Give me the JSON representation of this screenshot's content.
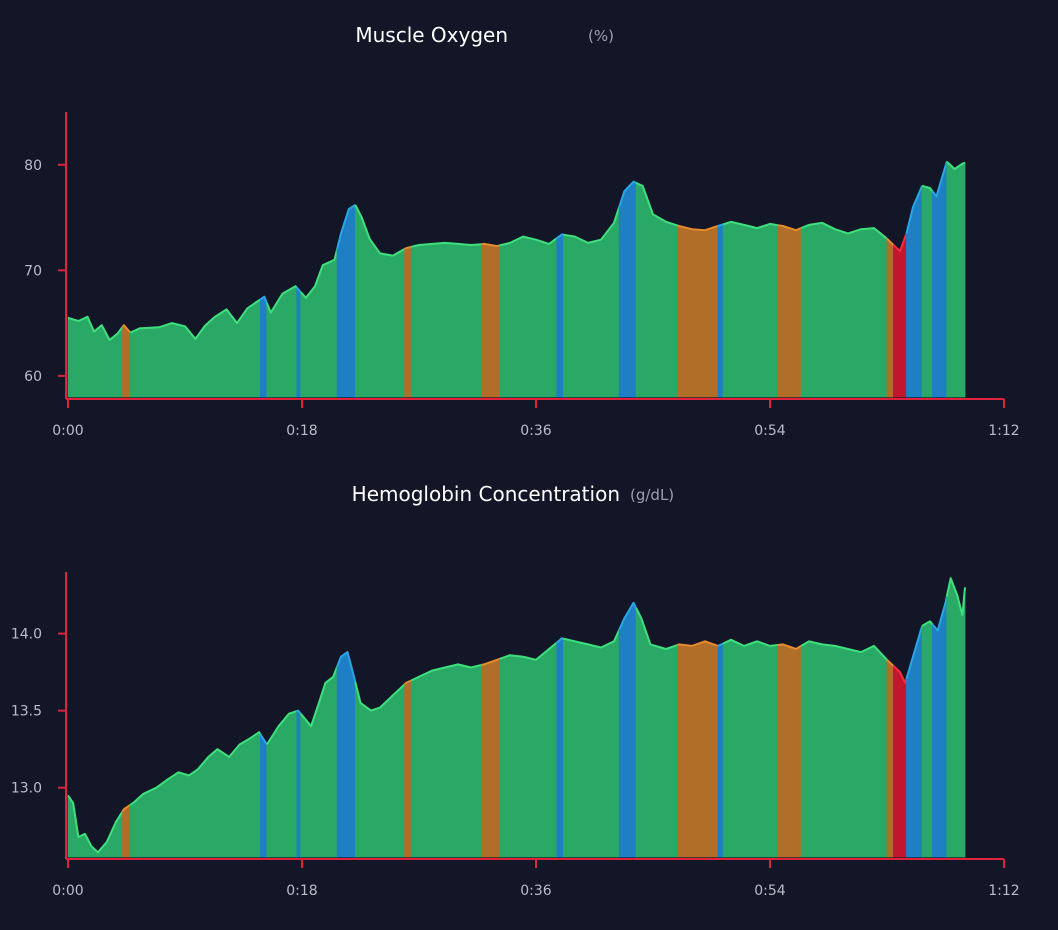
{
  "colors": {
    "background": "#121626",
    "axis": "#e0223a",
    "zone_green": "#2aa866",
    "zone_green_line": "#3ee07e",
    "zone_blue": "#1e7fc3",
    "zone_blue_line": "#2aa6e6",
    "zone_orange": "#b06e28",
    "zone_orange_line": "#e88a2e",
    "zone_red": "#c0162e",
    "zone_red_line": "#ff2a3c"
  },
  "chart_data": [
    {
      "type": "area",
      "title": "Muscle Oxygen",
      "unit": "(%)",
      "xlabel": "",
      "ylabel": "",
      "xlim": [
        0,
        72
      ],
      "ylim": [
        58,
        85
      ],
      "x_ticks": [
        0,
        18,
        36,
        54,
        72
      ],
      "x_tick_labels": [
        "0:00",
        "0:18",
        "0:36",
        "0:54",
        "1:12"
      ],
      "y_ticks": [
        60,
        70,
        80
      ],
      "y_tick_labels": [
        "60",
        "70",
        "80"
      ],
      "x_end": 69,
      "points": [
        [
          0,
          65.5
        ],
        [
          0.8,
          65.2
        ],
        [
          1.5,
          65.6
        ],
        [
          2,
          64.2
        ],
        [
          2.6,
          64.8
        ],
        [
          3.2,
          63.4
        ],
        [
          3.8,
          64.0
        ],
        [
          4.3,
          64.8
        ],
        [
          4.8,
          64.1
        ],
        [
          5.5,
          64.5
        ],
        [
          7,
          64.6
        ],
        [
          8,
          65.0
        ],
        [
          9,
          64.7
        ],
        [
          9.8,
          63.5
        ],
        [
          10.5,
          64.7
        ],
        [
          11.3,
          65.6
        ],
        [
          12.2,
          66.3
        ],
        [
          13,
          65.0
        ],
        [
          13.8,
          66.4
        ],
        [
          14.5,
          67.0
        ],
        [
          15.1,
          67.5
        ],
        [
          15.6,
          66.0
        ],
        [
          16.5,
          67.8
        ],
        [
          17.5,
          68.5
        ],
        [
          18.3,
          67.4
        ],
        [
          19,
          68.5
        ],
        [
          19.6,
          70.5
        ],
        [
          20.5,
          71.0
        ],
        [
          21.0,
          73.5
        ],
        [
          21.6,
          75.8
        ],
        [
          22.1,
          76.2
        ],
        [
          22.6,
          75.0
        ],
        [
          23.2,
          73.0
        ],
        [
          24,
          71.6
        ],
        [
          25,
          71.4
        ],
        [
          26,
          72.1
        ],
        [
          27,
          72.4
        ],
        [
          28,
          72.5
        ],
        [
          29,
          72.6
        ],
        [
          30,
          72.5
        ],
        [
          31,
          72.4
        ],
        [
          32,
          72.5
        ],
        [
          33,
          72.3
        ],
        [
          34,
          72.6
        ],
        [
          35,
          73.2
        ],
        [
          36,
          72.9
        ],
        [
          37,
          72.5
        ],
        [
          38,
          73.4
        ],
        [
          39,
          73.2
        ],
        [
          40,
          72.6
        ],
        [
          41,
          72.9
        ],
        [
          42,
          74.5
        ],
        [
          42.8,
          77.5
        ],
        [
          43.5,
          78.4
        ],
        [
          44.2,
          78.0
        ],
        [
          45,
          75.3
        ],
        [
          46,
          74.6
        ],
        [
          47,
          74.2
        ],
        [
          48,
          73.9
        ],
        [
          49,
          73.8
        ],
        [
          50,
          74.2
        ],
        [
          51,
          74.6
        ],
        [
          52,
          74.3
        ],
        [
          53,
          74.0
        ],
        [
          54,
          74.4
        ],
        [
          55,
          74.2
        ],
        [
          56,
          73.8
        ],
        [
          57,
          74.3
        ],
        [
          58,
          74.5
        ],
        [
          59,
          73.9
        ],
        [
          60,
          73.5
        ],
        [
          61,
          73.9
        ],
        [
          62,
          74.0
        ],
        [
          63,
          73.0
        ],
        [
          64,
          71.8
        ],
        [
          64.5,
          73.5
        ],
        [
          65,
          76.0
        ],
        [
          65.7,
          78.0
        ],
        [
          66.3,
          77.8
        ],
        [
          66.8,
          77.0
        ],
        [
          67.6,
          80.3
        ],
        [
          68.2,
          79.6
        ],
        [
          68.8,
          80.1
        ],
        [
          69,
          80.2
        ]
      ],
      "zones": [
        {
          "from": 0,
          "to": 4.2,
          "zone": "green"
        },
        {
          "from": 4.2,
          "to": 4.8,
          "zone": "orange"
        },
        {
          "from": 4.8,
          "to": 14.8,
          "zone": "green"
        },
        {
          "from": 14.8,
          "to": 15.3,
          "zone": "blue"
        },
        {
          "from": 15.3,
          "to": 17.6,
          "zone": "green"
        },
        {
          "from": 17.6,
          "to": 17.9,
          "zone": "blue"
        },
        {
          "from": 17.9,
          "to": 20.7,
          "zone": "green"
        },
        {
          "from": 20.7,
          "to": 22.1,
          "zone": "blue"
        },
        {
          "from": 22.1,
          "to": 25.9,
          "zone": "green"
        },
        {
          "from": 25.9,
          "to": 26.4,
          "zone": "orange"
        },
        {
          "from": 26.4,
          "to": 31.8,
          "zone": "green"
        },
        {
          "from": 31.8,
          "to": 33.2,
          "zone": "orange"
        },
        {
          "from": 33.2,
          "to": 37.6,
          "zone": "green"
        },
        {
          "from": 37.6,
          "to": 38.1,
          "zone": "blue"
        },
        {
          "from": 38.1,
          "to": 42.4,
          "zone": "green"
        },
        {
          "from": 42.4,
          "to": 43.7,
          "zone": "blue"
        },
        {
          "from": 43.7,
          "to": 46.9,
          "zone": "green"
        },
        {
          "from": 46.9,
          "to": 50.0,
          "zone": "orange"
        },
        {
          "from": 50.0,
          "to": 50.4,
          "zone": "blue"
        },
        {
          "from": 50.4,
          "to": 54.6,
          "zone": "green"
        },
        {
          "from": 54.6,
          "to": 56.4,
          "zone": "orange"
        },
        {
          "from": 56.4,
          "to": 63.0,
          "zone": "green"
        },
        {
          "from": 63.0,
          "to": 63.5,
          "zone": "orange"
        },
        {
          "from": 63.5,
          "to": 64.5,
          "zone": "red"
        },
        {
          "from": 64.5,
          "to": 65.7,
          "zone": "blue"
        },
        {
          "from": 65.7,
          "to": 66.5,
          "zone": "green"
        },
        {
          "from": 66.5,
          "to": 67.6,
          "zone": "blue"
        },
        {
          "from": 67.6,
          "to": 69,
          "zone": "green"
        }
      ]
    },
    {
      "type": "area",
      "title": "Hemoglobin Concentration",
      "unit": "(g/dL)",
      "xlabel": "",
      "ylabel": "",
      "xlim": [
        0,
        72
      ],
      "ylim": [
        12.55,
        14.4
      ],
      "x_ticks": [
        0,
        18,
        36,
        54,
        72
      ],
      "x_tick_labels": [
        "0:00",
        "0:18",
        "0:36",
        "0:54",
        "1:12"
      ],
      "y_ticks": [
        13.0,
        13.5,
        14.0
      ],
      "y_tick_labels": [
        "13.0",
        "13.5",
        "14.0"
      ],
      "x_end": 69,
      "points": [
        [
          0,
          12.95
        ],
        [
          0.4,
          12.9
        ],
        [
          0.8,
          12.68
        ],
        [
          1.3,
          12.7
        ],
        [
          1.8,
          12.62
        ],
        [
          2.3,
          12.58
        ],
        [
          3,
          12.65
        ],
        [
          3.7,
          12.78
        ],
        [
          4.3,
          12.86
        ],
        [
          5,
          12.9
        ],
        [
          5.8,
          12.96
        ],
        [
          6.8,
          13.0
        ],
        [
          7.6,
          13.05
        ],
        [
          8.5,
          13.1
        ],
        [
          9.3,
          13.08
        ],
        [
          10,
          13.12
        ],
        [
          10.8,
          13.2
        ],
        [
          11.5,
          13.25
        ],
        [
          12.4,
          13.2
        ],
        [
          13.2,
          13.28
        ],
        [
          14,
          13.32
        ],
        [
          14.7,
          13.36
        ],
        [
          15.3,
          13.28
        ],
        [
          16.2,
          13.4
        ],
        [
          17,
          13.48
        ],
        [
          17.7,
          13.5
        ],
        [
          18.2,
          13.45
        ],
        [
          18.7,
          13.4
        ],
        [
          19.3,
          13.55
        ],
        [
          19.8,
          13.68
        ],
        [
          20.4,
          13.72
        ],
        [
          21.0,
          13.85
        ],
        [
          21.5,
          13.88
        ],
        [
          22.0,
          13.72
        ],
        [
          22.5,
          13.55
        ],
        [
          23.3,
          13.5
        ],
        [
          24,
          13.52
        ],
        [
          25,
          13.6
        ],
        [
          26,
          13.68
        ],
        [
          27,
          13.72
        ],
        [
          28,
          13.76
        ],
        [
          29,
          13.78
        ],
        [
          30,
          13.8
        ],
        [
          31,
          13.78
        ],
        [
          32,
          13.8
        ],
        [
          33,
          13.83
        ],
        [
          34,
          13.86
        ],
        [
          35,
          13.85
        ],
        [
          36,
          13.83
        ],
        [
          37,
          13.9
        ],
        [
          38,
          13.97
        ],
        [
          39,
          13.95
        ],
        [
          40,
          13.93
        ],
        [
          41,
          13.91
        ],
        [
          42,
          13.95
        ],
        [
          42.8,
          14.1
        ],
        [
          43.5,
          14.2
        ],
        [
          44.1,
          14.1
        ],
        [
          44.8,
          13.93
        ],
        [
          46,
          13.9
        ],
        [
          47,
          13.93
        ],
        [
          48,
          13.92
        ],
        [
          49,
          13.95
        ],
        [
          50,
          13.92
        ],
        [
          51,
          13.96
        ],
        [
          52,
          13.92
        ],
        [
          53,
          13.95
        ],
        [
          54,
          13.92
        ],
        [
          55,
          13.93
        ],
        [
          56,
          13.9
        ],
        [
          57,
          13.95
        ],
        [
          58,
          13.93
        ],
        [
          59,
          13.92
        ],
        [
          60,
          13.9
        ],
        [
          61,
          13.88
        ],
        [
          62,
          13.92
        ],
        [
          63,
          13.83
        ],
        [
          64,
          13.75
        ],
        [
          64.4,
          13.68
        ],
        [
          65,
          13.85
        ],
        [
          65.7,
          14.05
        ],
        [
          66.3,
          14.08
        ],
        [
          66.9,
          14.02
        ],
        [
          67.5,
          14.2
        ],
        [
          67.9,
          14.36
        ],
        [
          68.4,
          14.25
        ],
        [
          68.8,
          14.12
        ],
        [
          69,
          14.3
        ]
      ],
      "zones": [
        {
          "from": 0,
          "to": 4.2,
          "zone": "green"
        },
        {
          "from": 4.2,
          "to": 4.8,
          "zone": "orange"
        },
        {
          "from": 4.8,
          "to": 14.8,
          "zone": "green"
        },
        {
          "from": 14.8,
          "to": 15.3,
          "zone": "blue"
        },
        {
          "from": 15.3,
          "to": 17.6,
          "zone": "green"
        },
        {
          "from": 17.6,
          "to": 17.9,
          "zone": "blue"
        },
        {
          "from": 17.9,
          "to": 20.7,
          "zone": "green"
        },
        {
          "from": 20.7,
          "to": 22.1,
          "zone": "blue"
        },
        {
          "from": 22.1,
          "to": 25.9,
          "zone": "green"
        },
        {
          "from": 25.9,
          "to": 26.4,
          "zone": "orange"
        },
        {
          "from": 26.4,
          "to": 31.8,
          "zone": "green"
        },
        {
          "from": 31.8,
          "to": 33.2,
          "zone": "orange"
        },
        {
          "from": 33.2,
          "to": 37.6,
          "zone": "green"
        },
        {
          "from": 37.6,
          "to": 38.1,
          "zone": "blue"
        },
        {
          "from": 38.1,
          "to": 42.4,
          "zone": "green"
        },
        {
          "from": 42.4,
          "to": 43.7,
          "zone": "blue"
        },
        {
          "from": 43.7,
          "to": 46.9,
          "zone": "green"
        },
        {
          "from": 46.9,
          "to": 50.0,
          "zone": "orange"
        },
        {
          "from": 50.0,
          "to": 50.4,
          "zone": "blue"
        },
        {
          "from": 50.4,
          "to": 54.6,
          "zone": "green"
        },
        {
          "from": 54.6,
          "to": 56.4,
          "zone": "orange"
        },
        {
          "from": 56.4,
          "to": 63.0,
          "zone": "green"
        },
        {
          "from": 63.0,
          "to": 63.5,
          "zone": "orange"
        },
        {
          "from": 63.5,
          "to": 64.5,
          "zone": "red"
        },
        {
          "from": 64.5,
          "to": 65.7,
          "zone": "blue"
        },
        {
          "from": 65.7,
          "to": 66.5,
          "zone": "green"
        },
        {
          "from": 66.5,
          "to": 67.6,
          "zone": "blue"
        },
        {
          "from": 67.6,
          "to": 69,
          "zone": "green"
        }
      ]
    }
  ]
}
